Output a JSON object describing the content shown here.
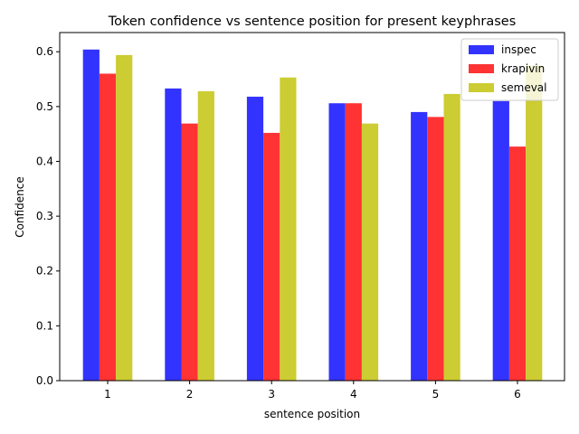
{
  "chart_data": {
    "type": "bar",
    "title": "Token confidence vs sentence position for present keyphrases",
    "xlabel": "sentence position",
    "ylabel": "Confidence",
    "categories": [
      "1",
      "2",
      "3",
      "4",
      "5",
      "6"
    ],
    "ylim": [
      0,
      0.635
    ],
    "yticks": [
      "0.0",
      "0.1",
      "0.2",
      "0.3",
      "0.4",
      "0.5",
      "0.6"
    ],
    "grid": false,
    "legend_position": "top-right",
    "series": [
      {
        "name": "inspec",
        "color": "#3333ff",
        "values": [
          0.604,
          0.533,
          0.518,
          0.506,
          0.49,
          0.51
        ]
      },
      {
        "name": "krapivin",
        "color": "#ff3333",
        "values": [
          0.56,
          0.469,
          0.452,
          0.506,
          0.481,
          0.427
        ]
      },
      {
        "name": "semeval",
        "color": "#cccc33",
        "values": [
          0.594,
          0.528,
          0.553,
          0.469,
          0.523,
          0.575
        ]
      }
    ]
  }
}
